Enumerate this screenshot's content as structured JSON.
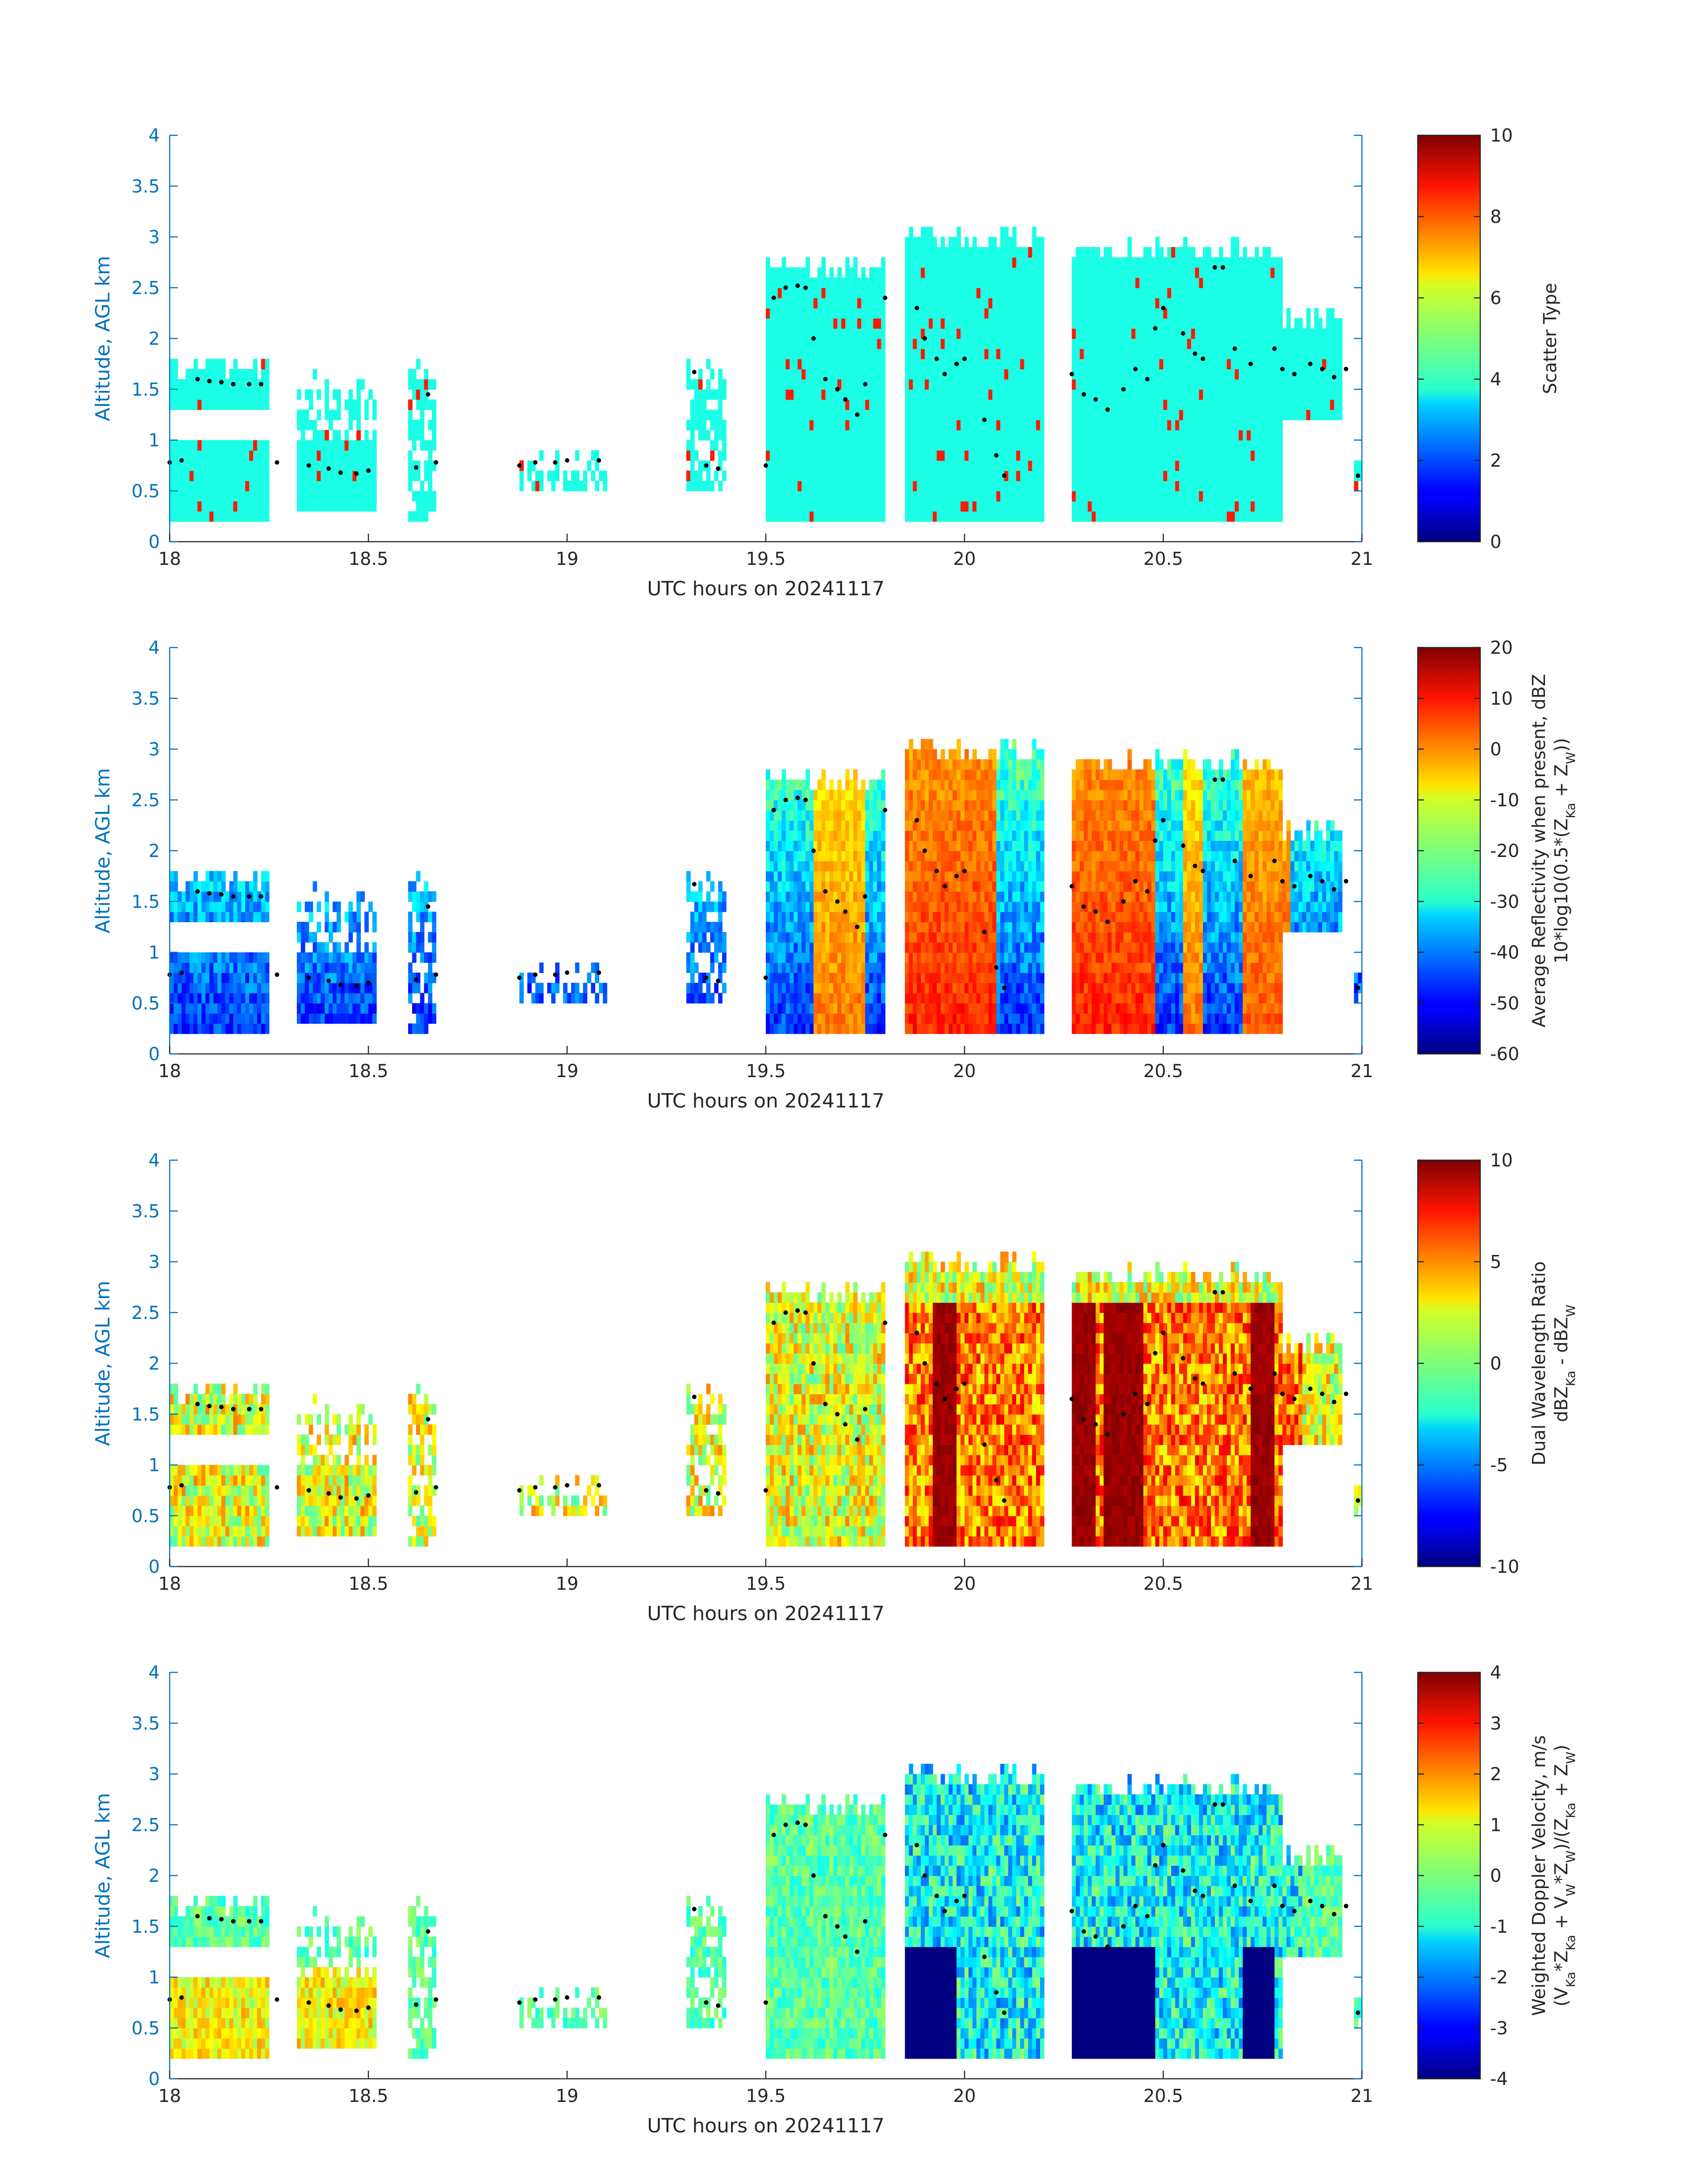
{
  "chart_data": [
    {
      "type": "heatmap",
      "title": "",
      "xlabel": "UTC hours on 20241117",
      "ylabel": "Altitude, AGL km",
      "xlim": [
        18,
        21
      ],
      "ylim": [
        0,
        4
      ],
      "xticks": [
        "18",
        "18.5",
        "19",
        "19.5",
        "20",
        "20.5",
        "21"
      ],
      "yticks": [
        "0",
        "0.5",
        "1",
        "1.5",
        "2",
        "2.5",
        "3",
        "3.5",
        "4"
      ],
      "colorbar": {
        "label_lines": [
          "Scatter Type"
        ],
        "range": [
          0,
          10
        ],
        "ticks": [
          "0",
          "2",
          "4",
          "6",
          "8",
          "10"
        ],
        "colormap": "jet"
      },
      "field": "scatter_type",
      "dominant_value": 4,
      "secondary_value": 8.5,
      "echo_column_tops": [
        {
          "x_range": [
            18.0,
            18.25
          ],
          "top_km": 1.85,
          "base_km": 0.2
        },
        {
          "x_range": [
            18.32,
            18.52
          ],
          "top_km": 1.7,
          "base_km": 0.3
        },
        {
          "x_range": [
            18.6,
            18.67
          ],
          "top_km": 1.85,
          "base_km": 0.2
        },
        {
          "x_range": [
            18.87,
            19.1
          ],
          "top_km": 0.9,
          "base_km": 0.55
        },
        {
          "x_range": [
            19.3,
            19.4
          ],
          "top_km": 1.8,
          "base_km": 0.55
        },
        {
          "x_range": [
            19.5,
            19.8
          ],
          "top_km": 2.8,
          "base_km": 0.2
        },
        {
          "x_range": [
            19.85,
            20.2
          ],
          "top_km": 3.1,
          "base_km": 0.2
        },
        {
          "x_range": [
            20.27,
            20.8
          ],
          "top_km": 3.0,
          "base_km": 0.2
        },
        {
          "x_range": [
            20.8,
            20.95
          ],
          "top_km": 2.3,
          "base_km": 1.2
        },
        {
          "x_range": [
            20.98,
            21.0
          ],
          "top_km": 0.95,
          "base_km": 0.55
        }
      ]
    },
    {
      "type": "heatmap",
      "title": "",
      "xlabel": "UTC hours on 20241117",
      "ylabel": "Altitude, AGL km",
      "xlim": [
        18,
        21
      ],
      "ylim": [
        0,
        4
      ],
      "xticks": [
        "18",
        "18.5",
        "19",
        "19.5",
        "20",
        "20.5",
        "21"
      ],
      "yticks": [
        "0",
        "0.5",
        "1",
        "1.5",
        "2",
        "2.5",
        "3",
        "3.5",
        "4"
      ],
      "colorbar": {
        "label_lines": [
          "Average Reflectivity when present, dBZ",
          "10*log10(0.5*(Z<sub>Ka</sub> + Z<sub>W</sub>))"
        ],
        "range": [
          -60,
          20
        ],
        "ticks": [
          "-60",
          "-50",
          "-40",
          "-30",
          "-20",
          "-10",
          "0",
          "10",
          "20"
        ],
        "colormap": "jet"
      },
      "field": "reflectivity_dbz",
      "convective_cores": [
        {
          "x_range": [
            19.62,
            19.75
          ],
          "max_dbz": 5
        },
        {
          "x_range": [
            19.85,
            20.08
          ],
          "max_dbz": 12
        },
        {
          "x_range": [
            20.27,
            20.48
          ],
          "max_dbz": 12
        },
        {
          "x_range": [
            20.55,
            20.6
          ],
          "max_dbz": 5
        },
        {
          "x_range": [
            20.7,
            20.82
          ],
          "max_dbz": 8
        }
      ]
    },
    {
      "type": "heatmap",
      "title": "",
      "xlabel": "UTC hours on 20241117",
      "ylabel": "Altitude, AGL km",
      "xlim": [
        18,
        21
      ],
      "ylim": [
        0,
        4
      ],
      "xticks": [
        "18",
        "18.5",
        "19",
        "19.5",
        "20",
        "20.5",
        "21"
      ],
      "yticks": [
        "0",
        "0.5",
        "1",
        "1.5",
        "2",
        "2.5",
        "3",
        "3.5",
        "4"
      ],
      "colorbar": {
        "label_lines": [
          "Dual Wavelength Ratio",
          "dBZ<sub>Ka</sub> - dBZ<sub>W</sub>"
        ],
        "range": [
          -10,
          10
        ],
        "ticks": [
          "-10",
          "-5",
          "0",
          "5",
          "10"
        ],
        "colormap": "jet"
      },
      "field": "dual_wavelength_ratio_db",
      "max_regions": [
        {
          "x_range": [
            19.92,
            19.98
          ],
          "value_db": 10
        },
        {
          "x_range": [
            20.27,
            20.33
          ],
          "value_db": 10
        },
        {
          "x_range": [
            20.35,
            20.45
          ],
          "value_db": 10
        },
        {
          "x_range": [
            20.72,
            20.78
          ],
          "value_db": 10
        }
      ]
    },
    {
      "type": "heatmap",
      "title": "",
      "xlabel": "UTC hours on 20241117",
      "ylabel": "Altitude, AGL km",
      "xlim": [
        18,
        21
      ],
      "ylim": [
        0,
        4
      ],
      "xticks": [
        "18",
        "18.5",
        "19",
        "19.5",
        "20",
        "20.5",
        "21"
      ],
      "yticks": [
        "0",
        "0.5",
        "1",
        "1.5",
        "2",
        "2.5",
        "3",
        "3.5",
        "4"
      ],
      "colorbar": {
        "label_lines": [
          "Weighted Doppler Velocity, m/s",
          "(V<sub>Ka</sub>*Z<sub>Ka</sub> + V<sub>W</sub>*Z<sub>W</sub>)/(Z<sub>Ka</sub> + Z<sub>W</sub>)"
        ],
        "range": [
          -4,
          4
        ],
        "ticks": [
          "-4",
          "-3",
          "-2",
          "-1",
          "0",
          "1",
          "2",
          "3",
          "4"
        ],
        "colormap": "jet"
      },
      "field": "weighted_doppler_velocity_ms",
      "strong_fall_regions": [
        {
          "x_range": [
            19.85,
            19.98
          ],
          "y_range_km": [
            0.2,
            1.25
          ],
          "value_ms": -4
        },
        {
          "x_range": [
            20.27,
            20.48
          ],
          "y_range_km": [
            0.2,
            1.25
          ],
          "value_ms": -4
        },
        {
          "x_range": [
            20.7,
            20.78
          ],
          "y_range_km": [
            0.2,
            1.25
          ],
          "value_ms": -4
        }
      ]
    }
  ],
  "overlay_markers": {
    "description_values_hours_km": [
      [
        18.0,
        0.78
      ],
      [
        18.03,
        0.8
      ],
      [
        18.07,
        1.6
      ],
      [
        18.1,
        1.58
      ],
      [
        18.13,
        1.57
      ],
      [
        18.16,
        1.55
      ],
      [
        18.2,
        1.55
      ],
      [
        18.23,
        1.55
      ],
      [
        18.27,
        0.78
      ],
      [
        18.35,
        0.75
      ],
      [
        18.4,
        0.72
      ],
      [
        18.43,
        0.68
      ],
      [
        18.47,
        0.67
      ],
      [
        18.5,
        0.7
      ],
      [
        18.62,
        0.73
      ],
      [
        18.65,
        1.45
      ],
      [
        18.67,
        0.78
      ],
      [
        18.88,
        0.75
      ],
      [
        18.92,
        0.78
      ],
      [
        18.97,
        0.78
      ],
      [
        19.0,
        0.8
      ],
      [
        19.08,
        0.8
      ],
      [
        19.32,
        1.67
      ],
      [
        19.35,
        0.75
      ],
      [
        19.38,
        0.72
      ],
      [
        19.5,
        0.75
      ],
      [
        19.52,
        2.4
      ],
      [
        19.55,
        2.5
      ],
      [
        19.58,
        2.52
      ],
      [
        19.6,
        2.5
      ],
      [
        19.62,
        2.0
      ],
      [
        19.65,
        1.6
      ],
      [
        19.68,
        1.5
      ],
      [
        19.7,
        1.4
      ],
      [
        19.73,
        1.25
      ],
      [
        19.75,
        1.55
      ],
      [
        19.8,
        2.4
      ],
      [
        19.88,
        2.3
      ],
      [
        19.9,
        2.0
      ],
      [
        19.93,
        1.8
      ],
      [
        19.95,
        1.65
      ],
      [
        19.98,
        1.75
      ],
      [
        20.0,
        1.8
      ],
      [
        20.05,
        1.2
      ],
      [
        20.08,
        0.85
      ],
      [
        20.1,
        0.65
      ],
      [
        20.27,
        1.65
      ],
      [
        20.3,
        1.45
      ],
      [
        20.33,
        1.4
      ],
      [
        20.36,
        1.3
      ],
      [
        20.4,
        1.5
      ],
      [
        20.43,
        1.7
      ],
      [
        20.46,
        1.6
      ],
      [
        20.48,
        2.1
      ],
      [
        20.5,
        2.3
      ],
      [
        20.55,
        2.05
      ],
      [
        20.58,
        1.85
      ],
      [
        20.6,
        1.8
      ],
      [
        20.63,
        2.7
      ],
      [
        20.65,
        2.7
      ],
      [
        20.68,
        1.9
      ],
      [
        20.72,
        1.75
      ],
      [
        20.78,
        1.9
      ],
      [
        20.8,
        1.7
      ],
      [
        20.83,
        1.65
      ],
      [
        20.87,
        1.75
      ],
      [
        20.9,
        1.7
      ],
      [
        20.93,
        1.62
      ],
      [
        20.96,
        1.7
      ],
      [
        20.99,
        0.65
      ]
    ]
  }
}
